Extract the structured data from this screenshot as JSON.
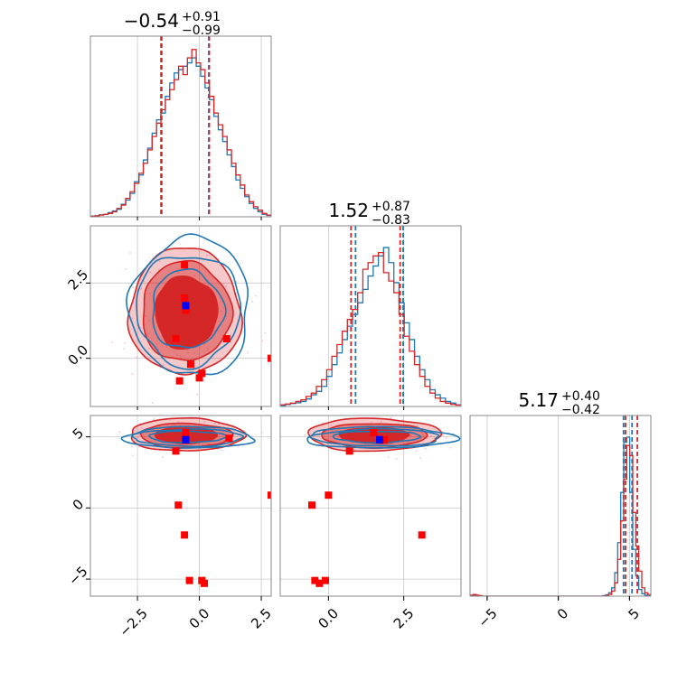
{
  "colors": {
    "blue": "#1f77b4",
    "red": "#d62728",
    "marker_red": "#ff0000",
    "marker_blue": "#0000ff",
    "scatter_pink": "#f4a6c4"
  },
  "titles": [
    {
      "value": "−0.54",
      "plus": "+0.91",
      "minus": "−0.99"
    },
    {
      "value": "1.52",
      "plus": "+0.87",
      "minus": "−0.83"
    },
    {
      "value": "5.17",
      "plus": "+0.40",
      "minus": "−0.42"
    }
  ],
  "chart_data": {
    "type": "corner",
    "dimensions": [
      {
        "range": [
          -4.4,
          2.9
        ],
        "ticks": [
          -2.5,
          0.0,
          2.5
        ],
        "tick_labels": [
          "−2.5",
          "0.0",
          "2.5"
        ]
      },
      {
        "range": [
          -1.6,
          4.4
        ],
        "ticks": [
          0.0,
          2.5
        ],
        "tick_labels": [
          "0.0",
          "2.5"
        ]
      },
      {
        "range": [
          -6.2,
          6.5
        ],
        "ticks": [
          -5,
          0,
          5
        ],
        "tick_labels": [
          "−5",
          "0",
          "5"
        ]
      }
    ],
    "histograms": [
      {
        "dim": 0,
        "bin_range": [
          -4.4,
          2.9
        ],
        "ymax": 1.0,
        "red": [
          0.003,
          0.005,
          0.01,
          0.015,
          0.02,
          0.03,
          0.05,
          0.07,
          0.11,
          0.15,
          0.2,
          0.26,
          0.32,
          0.4,
          0.48,
          0.56,
          0.64,
          0.7,
          0.76,
          0.82,
          0.9,
          0.85,
          0.95,
          1.0,
          0.92,
          0.88,
          0.8,
          0.72,
          0.62,
          0.55,
          0.48,
          0.4,
          0.32,
          0.25,
          0.19,
          0.13,
          0.09,
          0.06,
          0.04,
          0.02,
          0.01
        ],
        "blue": [
          0.004,
          0.006,
          0.012,
          0.014,
          0.025,
          0.035,
          0.045,
          0.075,
          0.1,
          0.14,
          0.21,
          0.25,
          0.34,
          0.41,
          0.5,
          0.58,
          0.62,
          0.72,
          0.8,
          0.86,
          0.88,
          0.9,
          0.92,
          0.95,
          0.9,
          0.84,
          0.77,
          0.7,
          0.6,
          0.52,
          0.45,
          0.37,
          0.3,
          0.22,
          0.17,
          0.12,
          0.08,
          0.05,
          0.03,
          0.015,
          0.008
        ],
        "quantiles_red": [
          -1.55,
          0.4
        ],
        "quantiles_blue": [
          -1.52,
          0.38
        ]
      },
      {
        "dim": 1,
        "bin_range": [
          -1.6,
          4.4
        ],
        "ymax": 1.0,
        "red": [
          0.01,
          0.015,
          0.02,
          0.03,
          0.04,
          0.06,
          0.08,
          0.12,
          0.16,
          0.22,
          0.3,
          0.37,
          0.45,
          0.52,
          0.58,
          0.68,
          0.82,
          0.86,
          0.9,
          0.92,
          0.8,
          0.75,
          0.68,
          0.55,
          0.42,
          0.33,
          0.25,
          0.18,
          0.12,
          0.08,
          0.05,
          0.03,
          0.02,
          0.012,
          0.008
        ],
        "blue": [
          0.005,
          0.012,
          0.018,
          0.022,
          0.03,
          0.045,
          0.07,
          0.09,
          0.12,
          0.18,
          0.25,
          0.32,
          0.4,
          0.48,
          0.55,
          0.62,
          0.7,
          0.78,
          0.84,
          0.9,
          0.95,
          0.86,
          0.74,
          0.62,
          0.5,
          0.4,
          0.3,
          0.22,
          0.16,
          0.1,
          0.07,
          0.05,
          0.03,
          0.02,
          0.01
        ],
        "quantiles_red": [
          0.75,
          2.38
        ],
        "quantiles_blue": [
          0.9,
          2.48
        ]
      },
      {
        "dim": 2,
        "bin_range": [
          -6.2,
          6.5
        ],
        "ymax": 1.0,
        "red": [
          0.006,
          0.01,
          0.006,
          0.003,
          0,
          0,
          0,
          0,
          0,
          0,
          0,
          0,
          0,
          0,
          0,
          0,
          0,
          0,
          0,
          0,
          0,
          0,
          0,
          0,
          0,
          0,
          0,
          0,
          0,
          0,
          0,
          0,
          0,
          0,
          0,
          0,
          0,
          0,
          0,
          0,
          0,
          0,
          0,
          0,
          0,
          0.004,
          0.01,
          0.03,
          0.08,
          0.22,
          0.45,
          0.7,
          0.9,
          0.84,
          0.5,
          0.3,
          0.15,
          0.05,
          0.02,
          0.01
        ],
        "blue": [
          0.004,
          0.006,
          0.004,
          0.002,
          0,
          0,
          0,
          0,
          0,
          0,
          0,
          0,
          0,
          0,
          0,
          0,
          0,
          0,
          0,
          0,
          0,
          0,
          0,
          0,
          0,
          0,
          0,
          0,
          0,
          0,
          0,
          0,
          0,
          0,
          0,
          0,
          0,
          0,
          0,
          0,
          0,
          0,
          0,
          0,
          0.003,
          0.008,
          0.02,
          0.05,
          0.14,
          0.32,
          0.62,
          0.92,
          0.95,
          0.62,
          0.28,
          0.12,
          0.04,
          0.015,
          0.006,
          0.002
        ],
        "quantiles_red": [
          4.72,
          5.55
        ],
        "quantiles_blue": [
          4.58,
          5.18
        ]
      }
    ],
    "pairs": [
      {
        "x_dim": 0,
        "y_dim": 1,
        "red_contours": [
          {
            "cx": -0.54,
            "cy": 1.52,
            "rx": 1.25,
            "ry": 1.2,
            "fill_opacity": 1.0
          },
          {
            "cx": -0.54,
            "cy": 1.55,
            "rx": 1.8,
            "ry": 1.65,
            "fill_opacity": 0.45
          },
          {
            "cx": -0.58,
            "cy": 1.55,
            "rx": 2.25,
            "ry": 2.1,
            "fill_opacity": 0.25
          }
        ],
        "blue_contours": [
          {
            "cx": -0.5,
            "cy": 1.62,
            "rx": 1.45,
            "ry": 1.3
          },
          {
            "cx": -0.45,
            "cy": 1.62,
            "rx": 2.1,
            "ry": 1.85
          },
          {
            "cx": -0.35,
            "cy": 1.7,
            "rx": 2.4,
            "ry": 2.3
          }
        ],
        "red_points": [
          [
            -0.6,
            3.1
          ],
          [
            -0.6,
            2.0
          ],
          [
            -0.55,
            1.6
          ],
          [
            -0.95,
            0.65
          ],
          [
            1.1,
            0.65
          ],
          [
            -0.35,
            -0.2
          ],
          [
            0.1,
            -0.5
          ],
          [
            0.0,
            -0.65
          ],
          [
            -0.8,
            -0.75
          ],
          [
            2.9,
            0.0
          ]
        ],
        "blue_points": [
          [
            -0.55,
            1.75
          ]
        ]
      },
      {
        "x_dim": 0,
        "y_dim": 2,
        "red_contours": [
          {
            "cx": -0.54,
            "cy": 5.1,
            "rx": 1.25,
            "ry": 0.55,
            "fill_opacity": 1.0
          },
          {
            "cx": -0.54,
            "cy": 5.1,
            "rx": 1.85,
            "ry": 0.85,
            "fill_opacity": 0.45
          },
          {
            "cx": -0.54,
            "cy": 5.15,
            "rx": 2.3,
            "ry": 1.15,
            "fill_opacity": 0.25
          }
        ],
        "blue_contours": [
          {
            "cx": -0.5,
            "cy": 5.0,
            "rx": 1.55,
            "ry": 0.4
          },
          {
            "cx": -0.45,
            "cy": 4.95,
            "rx": 2.2,
            "ry": 0.6
          },
          {
            "cx": -0.4,
            "cy": 4.95,
            "rx": 2.6,
            "ry": 0.75
          }
        ],
        "red_points": [
          [
            -0.55,
            5.3
          ],
          [
            -0.55,
            4.85
          ],
          [
            -0.95,
            4.0
          ],
          [
            1.2,
            4.9
          ],
          [
            -0.85,
            0.2
          ],
          [
            -0.6,
            -1.9
          ],
          [
            -0.4,
            -5.1
          ],
          [
            0.1,
            -5.1
          ],
          [
            0.2,
            -5.3
          ],
          [
            2.9,
            0.9
          ]
        ],
        "blue_points": [
          [
            -0.55,
            4.8
          ]
        ]
      },
      {
        "x_dim": 1,
        "y_dim": 2,
        "red_contours": [
          {
            "cx": 1.52,
            "cy": 5.1,
            "rx": 1.15,
            "ry": 0.55,
            "fill_opacity": 1.0
          },
          {
            "cx": 1.52,
            "cy": 5.1,
            "rx": 1.75,
            "ry": 0.85,
            "fill_opacity": 0.45
          },
          {
            "cx": 1.5,
            "cy": 5.15,
            "rx": 2.2,
            "ry": 1.15,
            "fill_opacity": 0.25
          }
        ],
        "blue_contours": [
          {
            "cx": 1.6,
            "cy": 5.0,
            "rx": 1.45,
            "ry": 0.4
          },
          {
            "cx": 1.65,
            "cy": 4.95,
            "rx": 2.1,
            "ry": 0.6
          },
          {
            "cx": 1.7,
            "cy": 4.95,
            "rx": 2.5,
            "ry": 0.75
          }
        ],
        "red_points": [
          [
            1.5,
            5.3
          ],
          [
            1.85,
            4.8
          ],
          [
            0.7,
            4.0
          ],
          [
            0.0,
            0.9
          ],
          [
            -0.55,
            0.2
          ],
          [
            3.1,
            -1.9
          ],
          [
            -0.45,
            -5.1
          ],
          [
            -0.3,
            -5.3
          ],
          [
            -0.1,
            -5.1
          ]
        ],
        "blue_points": [
          [
            1.7,
            4.8
          ]
        ]
      }
    ]
  }
}
